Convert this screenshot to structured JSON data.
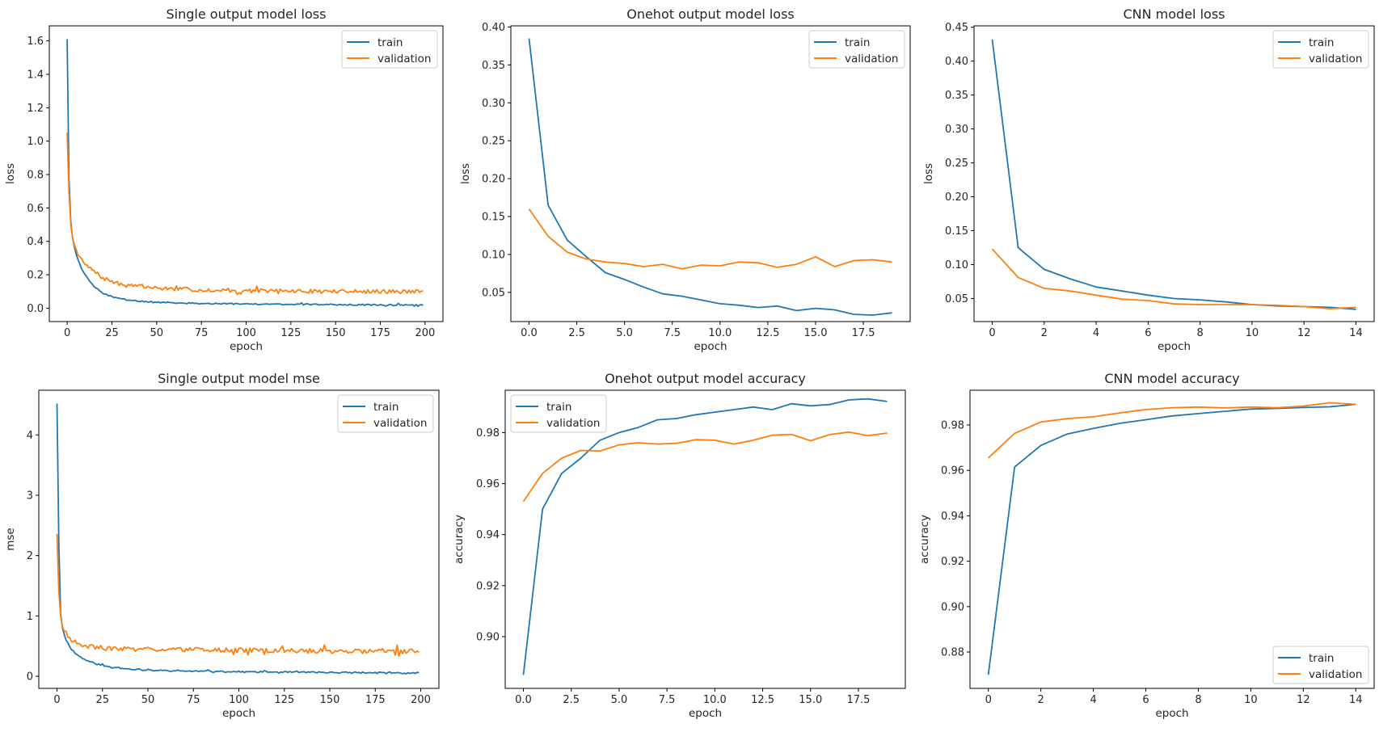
{
  "figure": {
    "colors": {
      "train": "#1f77b4",
      "validation": "#ff7f0e",
      "axes": "#000000",
      "legend_border": "#cccccc"
    }
  },
  "chart_data": [
    {
      "id": "single-loss",
      "type": "line",
      "title": "Single output model loss",
      "xlabel": "epoch",
      "ylabel": "loss",
      "xlim": [
        -10,
        210
      ],
      "ylim": [
        -0.08,
        1.69
      ],
      "xticks": [
        0,
        25,
        50,
        75,
        100,
        125,
        150,
        175,
        200
      ],
      "xtick_labels": [
        "0",
        "25",
        "50",
        "75",
        "100",
        "125",
        "150",
        "175",
        "200"
      ],
      "yticks": [
        0.0,
        0.2,
        0.4,
        0.6,
        0.8,
        1.0,
        1.2,
        1.4,
        1.6
      ],
      "ytick_labels": [
        "0.0",
        "0.2",
        "0.4",
        "0.6",
        "0.8",
        "1.0",
        "1.2",
        "1.4",
        "1.6"
      ],
      "legend": {
        "position": "upper-right",
        "entries": [
          "train",
          "validation"
        ]
      },
      "series": [
        {
          "name": "train",
          "generator": "decay",
          "n": 200,
          "start": 1.61,
          "floor": 0.018,
          "rate": 0.09,
          "noise": 0.004,
          "seed": 3,
          "anchors": [
            [
              0,
              1.61
            ],
            [
              1,
              0.78
            ],
            [
              2,
              0.52
            ],
            [
              3,
              0.42
            ],
            [
              5,
              0.32
            ],
            [
              8,
              0.24
            ],
            [
              10,
              0.2
            ],
            [
              15,
              0.13
            ],
            [
              20,
              0.09
            ],
            [
              25,
              0.07
            ],
            [
              30,
              0.055
            ],
            [
              40,
              0.042
            ],
            [
              50,
              0.035
            ],
            [
              75,
              0.028
            ],
            [
              100,
              0.025
            ],
            [
              150,
              0.021
            ],
            [
              199,
              0.018
            ]
          ]
        },
        {
          "name": "validation",
          "generator": "decay",
          "n": 200,
          "start": 1.05,
          "floor": 0.1,
          "rate": 0.09,
          "noise": 0.012,
          "seed": 7,
          "anchors": [
            [
              0,
              1.05
            ],
            [
              1,
              0.7
            ],
            [
              2,
              0.5
            ],
            [
              3,
              0.42
            ],
            [
              5,
              0.35
            ],
            [
              8,
              0.29
            ],
            [
              10,
              0.26
            ],
            [
              15,
              0.22
            ],
            [
              20,
              0.18
            ],
            [
              25,
              0.16
            ],
            [
              30,
              0.14
            ],
            [
              40,
              0.13
            ],
            [
              50,
              0.12
            ],
            [
              75,
              0.11
            ],
            [
              100,
              0.105
            ],
            [
              150,
              0.1
            ],
            [
              199,
              0.1
            ]
          ]
        }
      ]
    },
    {
      "id": "onehot-loss",
      "type": "line",
      "title": "Onehot output model loss",
      "xlabel": "epoch",
      "ylabel": "loss",
      "xlim": [
        -0.95,
        19.95
      ],
      "ylim": [
        0.0115,
        0.4015
      ],
      "xticks": [
        0,
        2.5,
        5,
        7.5,
        10,
        12.5,
        15,
        17.5
      ],
      "xtick_labels": [
        "0.0",
        "2.5",
        "5.0",
        "7.5",
        "10.0",
        "12.5",
        "15.0",
        "17.5"
      ],
      "yticks": [
        0.05,
        0.1,
        0.15,
        0.2,
        0.25,
        0.3,
        0.35,
        0.4
      ],
      "ytick_labels": [
        "0.05",
        "0.10",
        "0.15",
        "0.20",
        "0.25",
        "0.30",
        "0.35",
        "0.40"
      ],
      "legend": {
        "position": "upper-right",
        "entries": [
          "train",
          "validation"
        ]
      },
      "series": [
        {
          "name": "train",
          "x": [
            0,
            1,
            2,
            3,
            4,
            5,
            6,
            7,
            8,
            9,
            10,
            11,
            12,
            13,
            14,
            15,
            16,
            17,
            18,
            19
          ],
          "y": [
            0.385,
            0.165,
            0.119,
            0.097,
            0.076,
            0.067,
            0.057,
            0.048,
            0.045,
            0.04,
            0.035,
            0.033,
            0.03,
            0.032,
            0.026,
            0.029,
            0.027,
            0.021,
            0.02,
            0.023
          ]
        },
        {
          "name": "validation",
          "x": [
            0,
            1,
            2,
            3,
            4,
            5,
            6,
            7,
            8,
            9,
            10,
            11,
            12,
            13,
            14,
            15,
            16,
            17,
            18,
            19
          ],
          "y": [
            0.16,
            0.124,
            0.103,
            0.094,
            0.09,
            0.088,
            0.084,
            0.087,
            0.081,
            0.086,
            0.085,
            0.09,
            0.089,
            0.083,
            0.087,
            0.097,
            0.084,
            0.092,
            0.093,
            0.09
          ]
        }
      ]
    },
    {
      "id": "cnn-loss",
      "type": "line",
      "title": "CNN model loss",
      "xlabel": "epoch",
      "ylabel": "loss",
      "xlim": [
        -0.7,
        14.7
      ],
      "ylim": [
        0.016,
        0.452
      ],
      "xticks": [
        0,
        2,
        4,
        6,
        8,
        10,
        12,
        14
      ],
      "xtick_labels": [
        "0",
        "2",
        "4",
        "6",
        "8",
        "10",
        "12",
        "14"
      ],
      "yticks": [
        0.05,
        0.1,
        0.15,
        0.2,
        0.25,
        0.3,
        0.35,
        0.4,
        0.45
      ],
      "ytick_labels": [
        "0.05",
        "0.10",
        "0.15",
        "0.20",
        "0.25",
        "0.30",
        "0.35",
        "0.40",
        "0.45"
      ],
      "legend": {
        "position": "upper-right",
        "entries": [
          "train",
          "validation"
        ]
      },
      "series": [
        {
          "name": "train",
          "x": [
            0,
            1,
            2,
            3,
            4,
            5,
            6,
            7,
            8,
            9,
            10,
            11,
            12,
            13,
            14
          ],
          "y": [
            0.432,
            0.125,
            0.093,
            0.079,
            0.067,
            0.061,
            0.055,
            0.05,
            0.048,
            0.045,
            0.041,
            0.039,
            0.038,
            0.037,
            0.034
          ]
        },
        {
          "name": "validation",
          "x": [
            0,
            1,
            2,
            3,
            4,
            5,
            6,
            7,
            8,
            9,
            10,
            11,
            12,
            13,
            14
          ],
          "y": [
            0.123,
            0.081,
            0.065,
            0.061,
            0.055,
            0.049,
            0.047,
            0.042,
            0.041,
            0.041,
            0.041,
            0.04,
            0.038,
            0.035,
            0.037
          ]
        }
      ]
    },
    {
      "id": "single-mse",
      "type": "line",
      "title": "Single output model mse",
      "xlabel": "epoch",
      "ylabel": "mse",
      "xlim": [
        -10,
        210
      ],
      "ylim": [
        -0.2,
        4.74
      ],
      "xticks": [
        0,
        25,
        50,
        75,
        100,
        125,
        150,
        175,
        200
      ],
      "xtick_labels": [
        "0",
        "25",
        "50",
        "75",
        "100",
        "125",
        "150",
        "175",
        "200"
      ],
      "yticks": [
        0,
        1,
        2,
        3,
        4
      ],
      "ytick_labels": [
        "0",
        "1",
        "2",
        "3",
        "4"
      ],
      "legend": {
        "position": "upper-right",
        "entries": [
          "train",
          "validation"
        ]
      },
      "series": [
        {
          "name": "train",
          "generator": "decay",
          "n": 200,
          "noise": 0.012,
          "seed": 11,
          "anchors": [
            [
              0,
              4.52
            ],
            [
              1,
              2.2
            ],
            [
              2,
              1.05
            ],
            [
              3,
              0.8
            ],
            [
              5,
              0.6
            ],
            [
              8,
              0.45
            ],
            [
              10,
              0.38
            ],
            [
              15,
              0.28
            ],
            [
              20,
              0.22
            ],
            [
              25,
              0.18
            ],
            [
              30,
              0.15
            ],
            [
              40,
              0.12
            ],
            [
              50,
              0.1
            ],
            [
              75,
              0.085
            ],
            [
              100,
              0.075
            ],
            [
              150,
              0.065
            ],
            [
              199,
              0.05
            ]
          ]
        },
        {
          "name": "validation",
          "generator": "decay",
          "n": 200,
          "noise": 0.04,
          "seed": 19,
          "anchors": [
            [
              0,
              2.36
            ],
            [
              1,
              1.4
            ],
            [
              2,
              1.0
            ],
            [
              3,
              0.82
            ],
            [
              5,
              0.72
            ],
            [
              8,
              0.6
            ],
            [
              10,
              0.56
            ],
            [
              15,
              0.5
            ],
            [
              20,
              0.48
            ],
            [
              30,
              0.46
            ],
            [
              50,
              0.45
            ],
            [
              75,
              0.44
            ],
            [
              100,
              0.43
            ],
            [
              150,
              0.42
            ],
            [
              199,
              0.41
            ]
          ]
        }
      ]
    },
    {
      "id": "onehot-accuracy",
      "type": "line",
      "title": "Onehot output model accuracy",
      "xlabel": "epoch",
      "ylabel": "accuracy",
      "xlim": [
        -0.95,
        19.95
      ],
      "ylim": [
        0.8797,
        0.9966
      ],
      "xticks": [
        0,
        2.5,
        5,
        7.5,
        10,
        12.5,
        15,
        17.5
      ],
      "xtick_labels": [
        "0.0",
        "2.5",
        "5.0",
        "7.5",
        "10.0",
        "12.5",
        "15.0",
        "17.5"
      ],
      "yticks": [
        0.9,
        0.92,
        0.94,
        0.96,
        0.98
      ],
      "ytick_labels": [
        "0.90",
        "0.92",
        "0.94",
        "0.96",
        "0.98"
      ],
      "legend": {
        "position": "upper-left",
        "entries": [
          "train",
          "validation"
        ]
      },
      "series": [
        {
          "name": "train",
          "x": [
            0,
            1,
            2,
            3,
            4,
            5,
            6,
            7,
            8,
            9,
            10,
            11,
            12,
            13,
            14,
            15,
            16,
            17,
            18,
            19
          ],
          "y": [
            0.885,
            0.95,
            0.964,
            0.97,
            0.977,
            0.98,
            0.982,
            0.985,
            0.9855,
            0.987,
            0.988,
            0.989,
            0.99,
            0.989,
            0.9913,
            0.9905,
            0.991,
            0.9928,
            0.9932,
            0.9922
          ]
        },
        {
          "name": "validation",
          "x": [
            0,
            1,
            2,
            3,
            4,
            5,
            6,
            7,
            8,
            9,
            10,
            11,
            12,
            13,
            14,
            15,
            16,
            17,
            18,
            19
          ],
          "y": [
            0.953,
            0.964,
            0.97,
            0.973,
            0.9728,
            0.9752,
            0.976,
            0.9755,
            0.9758,
            0.9772,
            0.977,
            0.9755,
            0.977,
            0.979,
            0.9793,
            0.9768,
            0.9792,
            0.9802,
            0.9788,
            0.9798
          ]
        }
      ]
    },
    {
      "id": "cnn-accuracy",
      "type": "line",
      "title": "CNN model accuracy",
      "xlabel": "epoch",
      "ylabel": "accuracy",
      "xlim": [
        -0.7,
        14.7
      ],
      "ylim": [
        0.864,
        0.9953
      ],
      "xticks": [
        0,
        2,
        4,
        6,
        8,
        10,
        12,
        14
      ],
      "xtick_labels": [
        "0",
        "2",
        "4",
        "6",
        "8",
        "10",
        "12",
        "14"
      ],
      "yticks": [
        0.88,
        0.9,
        0.92,
        0.94,
        0.96,
        0.98
      ],
      "ytick_labels": [
        "0.88",
        "0.90",
        "0.92",
        "0.94",
        "0.96",
        "0.98"
      ],
      "legend": {
        "position": "lower-right",
        "entries": [
          "train",
          "validation"
        ]
      },
      "series": [
        {
          "name": "train",
          "x": [
            0,
            1,
            2,
            3,
            4,
            5,
            6,
            7,
            8,
            9,
            10,
            11,
            12,
            13,
            14
          ],
          "y": [
            0.87,
            0.9615,
            0.971,
            0.976,
            0.9785,
            0.9807,
            0.9823,
            0.984,
            0.985,
            0.986,
            0.987,
            0.9873,
            0.9877,
            0.988,
            0.9891
          ]
        },
        {
          "name": "validation",
          "x": [
            0,
            1,
            2,
            3,
            4,
            5,
            6,
            7,
            8,
            9,
            10,
            11,
            12,
            13,
            14
          ],
          "y": [
            0.9655,
            0.9763,
            0.9813,
            0.9828,
            0.9836,
            0.9853,
            0.9868,
            0.9876,
            0.9879,
            0.9875,
            0.9879,
            0.9876,
            0.9883,
            0.9898,
            0.9891
          ]
        }
      ]
    }
  ]
}
